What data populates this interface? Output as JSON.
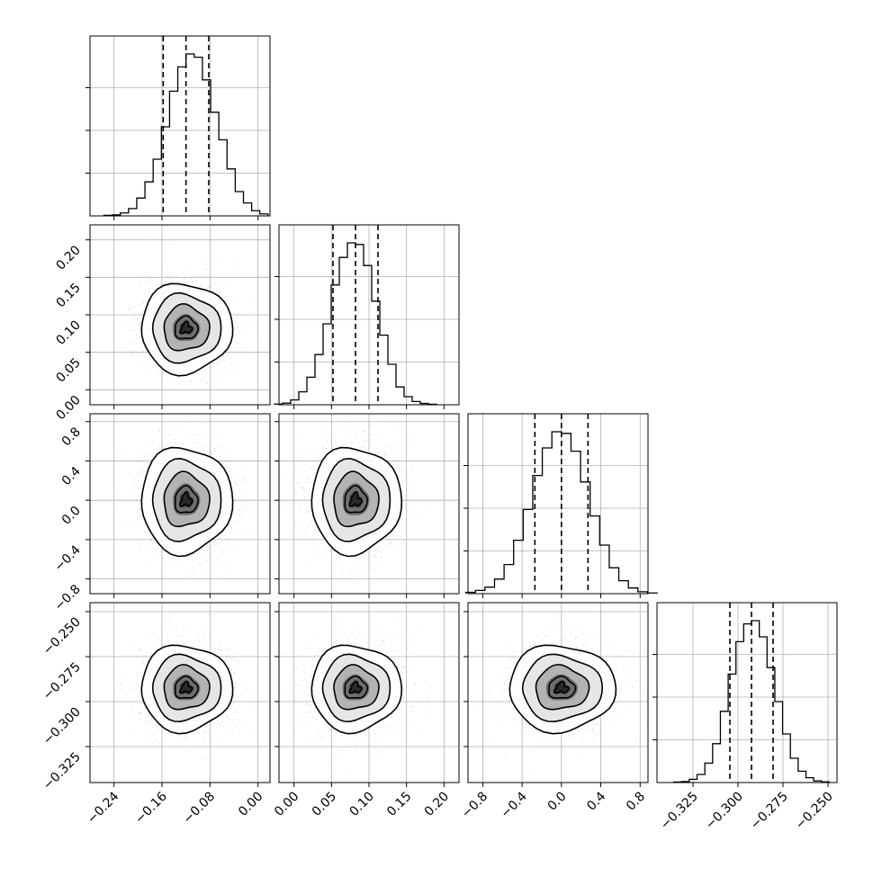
{
  "chart_data": {
    "type": "corner",
    "n_params": 4,
    "params": [
      {
        "range": [
          -0.28,
          0.02
        ],
        "ticks": [
          "-0.24",
          "-0.16",
          "-0.08",
          "0.00"
        ],
        "tick_values": [
          -0.24,
          -0.16,
          -0.08,
          0.0
        ],
        "quantiles": [
          -0.158,
          -0.12,
          -0.082
        ],
        "mean": -0.12,
        "sd": 0.038
      },
      {
        "range": [
          -0.02,
          0.22
        ],
        "ticks": [
          "0.00",
          "0.05",
          "0.10",
          "0.15",
          "0.20"
        ],
        "tick_values": [
          0.0,
          0.05,
          0.1,
          0.15,
          0.2
        ],
        "quantiles": [
          0.052,
          0.082,
          0.112
        ],
        "mean": 0.082,
        "sd": 0.03
      },
      {
        "range": [
          -0.95,
          0.88
        ],
        "ticks": [
          "-0.8",
          "-0.4",
          "0.0",
          "0.4",
          "0.8"
        ],
        "tick_values": [
          -0.8,
          -0.4,
          0.0,
          0.4,
          0.8
        ],
        "quantiles": [
          -0.27,
          0.0,
          0.27
        ],
        "mean": 0.0,
        "sd": 0.27
      },
      {
        "range": [
          -0.345,
          -0.245
        ],
        "ticks": [
          "-0.325",
          "-0.300",
          "-0.275",
          "-0.250"
        ],
        "tick_values": [
          -0.325,
          -0.3,
          -0.275,
          -0.25
        ],
        "quantiles": [
          -0.3045,
          -0.2925,
          -0.2805
        ],
        "mean": -0.2925,
        "sd": 0.012
      }
    ],
    "histograms": [
      [
        0.003,
        0.006,
        0.018,
        0.045,
        0.11,
        0.21,
        0.35,
        0.55,
        0.77,
        0.92,
        1.0,
        0.98,
        0.84,
        0.64,
        0.47,
        0.29,
        0.15,
        0.08,
        0.032,
        0.012
      ],
      [
        0.004,
        0.01,
        0.03,
        0.08,
        0.17,
        0.31,
        0.5,
        0.74,
        0.91,
        1.0,
        0.99,
        0.86,
        0.64,
        0.43,
        0.25,
        0.11,
        0.05,
        0.02,
        0.008,
        0.003
      ],
      [
        0.008,
        0.02,
        0.04,
        0.09,
        0.18,
        0.33,
        0.52,
        0.73,
        0.9,
        1.0,
        0.99,
        0.88,
        0.69,
        0.48,
        0.3,
        0.16,
        0.08,
        0.035,
        0.012,
        0.004
      ],
      [
        0.003,
        0.006,
        0.02,
        0.05,
        0.12,
        0.24,
        0.44,
        0.67,
        0.87,
        0.98,
        1.0,
        0.9,
        0.71,
        0.5,
        0.3,
        0.15,
        0.07,
        0.03,
        0.01,
        0.004
      ]
    ],
    "grid": true,
    "legend": "none"
  },
  "colors": {
    "line": "#000000",
    "grid": "#b0b0b0",
    "scatter": "#9a9a9a"
  }
}
